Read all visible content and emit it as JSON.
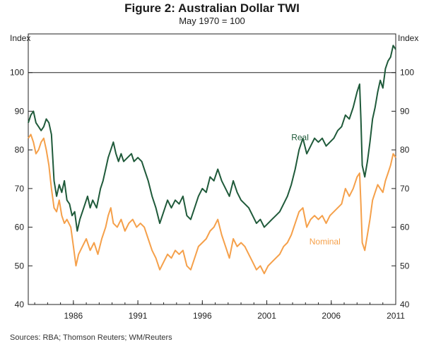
{
  "chart_data": {
    "type": "line",
    "title": "Figure 2: Australian Dollar TWI",
    "subtitle": "May 1970 = 100",
    "ylabel_left": "Index",
    "ylabel_right": "Index",
    "ylim": [
      40,
      110
    ],
    "yticks": [
      40,
      50,
      60,
      70,
      80,
      90,
      100
    ],
    "reference_line": 100,
    "xlim": [
      1983.0,
      2011.5
    ],
    "xticks": [
      {
        "value": 1986.5,
        "label": "1986"
      },
      {
        "value": 1991.5,
        "label": "1991"
      },
      {
        "value": 1996.5,
        "label": "1996"
      },
      {
        "value": 2001.5,
        "label": "2001"
      },
      {
        "value": 2006.5,
        "label": "2006"
      },
      {
        "value": 2011.5,
        "label": "2011"
      }
    ],
    "series": [
      {
        "name": "Real",
        "color": "#1f5a3a",
        "points": [
          [
            1983.0,
            87
          ],
          [
            1983.2,
            89
          ],
          [
            1983.4,
            90
          ],
          [
            1983.6,
            87
          ],
          [
            1983.8,
            86
          ],
          [
            1984.0,
            85
          ],
          [
            1984.2,
            86
          ],
          [
            1984.4,
            88
          ],
          [
            1984.6,
            87
          ],
          [
            1984.8,
            84
          ],
          [
            1985.0,
            72
          ],
          [
            1985.2,
            68
          ],
          [
            1985.4,
            71
          ],
          [
            1985.6,
            69
          ],
          [
            1985.8,
            72
          ],
          [
            1986.0,
            67
          ],
          [
            1986.2,
            66
          ],
          [
            1986.4,
            63
          ],
          [
            1986.6,
            64
          ],
          [
            1986.8,
            59
          ],
          [
            1987.0,
            62
          ],
          [
            1987.3,
            65
          ],
          [
            1987.6,
            68
          ],
          [
            1987.8,
            65
          ],
          [
            1988.0,
            67
          ],
          [
            1988.3,
            65
          ],
          [
            1988.6,
            70
          ],
          [
            1988.8,
            72
          ],
          [
            1989.0,
            75
          ],
          [
            1989.2,
            78
          ],
          [
            1989.4,
            80
          ],
          [
            1989.6,
            82
          ],
          [
            1989.8,
            79
          ],
          [
            1990.0,
            77
          ],
          [
            1990.2,
            79
          ],
          [
            1990.4,
            77
          ],
          [
            1990.7,
            78
          ],
          [
            1991.0,
            79
          ],
          [
            1991.2,
            77
          ],
          [
            1991.5,
            78
          ],
          [
            1991.8,
            77
          ],
          [
            1992.0,
            75
          ],
          [
            1992.3,
            72
          ],
          [
            1992.6,
            68
          ],
          [
            1992.9,
            65
          ],
          [
            1993.2,
            61
          ],
          [
            1993.5,
            64
          ],
          [
            1993.8,
            67
          ],
          [
            1994.1,
            65
          ],
          [
            1994.4,
            67
          ],
          [
            1994.7,
            66
          ],
          [
            1995.0,
            68
          ],
          [
            1995.3,
            63
          ],
          [
            1995.6,
            62
          ],
          [
            1995.9,
            65
          ],
          [
            1996.2,
            68
          ],
          [
            1996.5,
            70
          ],
          [
            1996.8,
            69
          ],
          [
            1997.1,
            73
          ],
          [
            1997.4,
            72
          ],
          [
            1997.7,
            75
          ],
          [
            1998.0,
            72
          ],
          [
            1998.3,
            70
          ],
          [
            1998.6,
            68
          ],
          [
            1998.9,
            72
          ],
          [
            1999.2,
            69
          ],
          [
            1999.5,
            67
          ],
          [
            1999.8,
            66
          ],
          [
            2000.1,
            65
          ],
          [
            2000.4,
            63
          ],
          [
            2000.7,
            61
          ],
          [
            2001.0,
            62
          ],
          [
            2001.3,
            60
          ],
          [
            2001.6,
            61
          ],
          [
            2001.9,
            62
          ],
          [
            2002.2,
            63
          ],
          [
            2002.5,
            64
          ],
          [
            2002.8,
            66
          ],
          [
            2003.1,
            68
          ],
          [
            2003.4,
            71
          ],
          [
            2003.7,
            75
          ],
          [
            2004.0,
            80
          ],
          [
            2004.3,
            83
          ],
          [
            2004.6,
            79
          ],
          [
            2004.9,
            81
          ],
          [
            2005.2,
            83
          ],
          [
            2005.5,
            82
          ],
          [
            2005.8,
            83
          ],
          [
            2006.1,
            81
          ],
          [
            2006.4,
            82
          ],
          [
            2006.7,
            83
          ],
          [
            2007.0,
            85
          ],
          [
            2007.3,
            86
          ],
          [
            2007.6,
            89
          ],
          [
            2007.9,
            88
          ],
          [
            2008.2,
            91
          ],
          [
            2008.5,
            95
          ],
          [
            2008.7,
            97
          ],
          [
            2008.8,
            88
          ],
          [
            2008.9,
            76
          ],
          [
            2009.1,
            73
          ],
          [
            2009.3,
            77
          ],
          [
            2009.5,
            82
          ],
          [
            2009.7,
            88
          ],
          [
            2009.9,
            91
          ],
          [
            2010.1,
            95
          ],
          [
            2010.3,
            98
          ],
          [
            2010.5,
            96
          ],
          [
            2010.7,
            101
          ],
          [
            2010.9,
            103
          ],
          [
            2011.1,
            104
          ],
          [
            2011.3,
            107
          ],
          [
            2011.5,
            106
          ]
        ]
      },
      {
        "name": "Nominal",
        "color": "#f5a04a",
        "points": [
          [
            1983.0,
            83
          ],
          [
            1983.2,
            84
          ],
          [
            1983.4,
            82
          ],
          [
            1983.6,
            79
          ],
          [
            1983.8,
            80
          ],
          [
            1984.0,
            82
          ],
          [
            1984.2,
            83
          ],
          [
            1984.4,
            80
          ],
          [
            1984.6,
            76
          ],
          [
            1984.8,
            70
          ],
          [
            1985.0,
            65
          ],
          [
            1985.2,
            64
          ],
          [
            1985.4,
            67
          ],
          [
            1985.6,
            63
          ],
          [
            1985.8,
            61
          ],
          [
            1986.0,
            62
          ],
          [
            1986.3,
            60
          ],
          [
            1986.5,
            55
          ],
          [
            1986.7,
            50
          ],
          [
            1986.9,
            53
          ],
          [
            1987.2,
            55
          ],
          [
            1987.5,
            57
          ],
          [
            1987.8,
            54
          ],
          [
            1988.1,
            56
          ],
          [
            1988.4,
            53
          ],
          [
            1988.7,
            57
          ],
          [
            1989.0,
            60
          ],
          [
            1989.2,
            63
          ],
          [
            1989.4,
            65
          ],
          [
            1989.6,
            61
          ],
          [
            1989.9,
            60
          ],
          [
            1990.2,
            62
          ],
          [
            1990.5,
            59
          ],
          [
            1990.8,
            61
          ],
          [
            1991.1,
            62
          ],
          [
            1991.4,
            60
          ],
          [
            1991.7,
            61
          ],
          [
            1992.0,
            60
          ],
          [
            1992.3,
            57
          ],
          [
            1992.6,
            54
          ],
          [
            1992.9,
            52
          ],
          [
            1993.2,
            49
          ],
          [
            1993.5,
            51
          ],
          [
            1993.8,
            53
          ],
          [
            1994.1,
            52
          ],
          [
            1994.4,
            54
          ],
          [
            1994.7,
            53
          ],
          [
            1995.0,
            54
          ],
          [
            1995.3,
            50
          ],
          [
            1995.6,
            49
          ],
          [
            1995.9,
            52
          ],
          [
            1996.2,
            55
          ],
          [
            1996.5,
            56
          ],
          [
            1996.8,
            57
          ],
          [
            1997.1,
            59
          ],
          [
            1997.4,
            60
          ],
          [
            1997.7,
            62
          ],
          [
            1998.0,
            58
          ],
          [
            1998.3,
            55
          ],
          [
            1998.6,
            52
          ],
          [
            1998.9,
            57
          ],
          [
            1999.2,
            55
          ],
          [
            1999.5,
            56
          ],
          [
            1999.8,
            55
          ],
          [
            2000.1,
            53
          ],
          [
            2000.4,
            51
          ],
          [
            2000.7,
            49
          ],
          [
            2001.0,
            50
          ],
          [
            2001.3,
            48
          ],
          [
            2001.6,
            50
          ],
          [
            2001.9,
            51
          ],
          [
            2002.2,
            52
          ],
          [
            2002.5,
            53
          ],
          [
            2002.8,
            55
          ],
          [
            2003.1,
            56
          ],
          [
            2003.4,
            58
          ],
          [
            2003.7,
            61
          ],
          [
            2004.0,
            64
          ],
          [
            2004.3,
            65
          ],
          [
            2004.6,
            60
          ],
          [
            2004.9,
            62
          ],
          [
            2005.2,
            63
          ],
          [
            2005.5,
            62
          ],
          [
            2005.8,
            63
          ],
          [
            2006.1,
            61
          ],
          [
            2006.4,
            63
          ],
          [
            2006.7,
            64
          ],
          [
            2007.0,
            65
          ],
          [
            2007.3,
            66
          ],
          [
            2007.6,
            70
          ],
          [
            2007.9,
            68
          ],
          [
            2008.2,
            70
          ],
          [
            2008.5,
            73
          ],
          [
            2008.7,
            74
          ],
          [
            2008.8,
            66
          ],
          [
            2008.9,
            56
          ],
          [
            2009.1,
            54
          ],
          [
            2009.3,
            58
          ],
          [
            2009.5,
            62
          ],
          [
            2009.7,
            67
          ],
          [
            2009.9,
            69
          ],
          [
            2010.1,
            71
          ],
          [
            2010.3,
            70
          ],
          [
            2010.5,
            69
          ],
          [
            2010.7,
            72
          ],
          [
            2010.9,
            74
          ],
          [
            2011.1,
            76
          ],
          [
            2011.3,
            79
          ],
          [
            2011.5,
            78
          ]
        ]
      }
    ],
    "labels": [
      {
        "series": "Real",
        "text": "Real",
        "x": 2003.4,
        "y": 82.5
      },
      {
        "series": "Nominal",
        "text": "Nominal",
        "x": 2004.8,
        "y": 55.5
      }
    ]
  },
  "source_text": "Sources:  RBA; Thomson Reuters; WM/Reuters"
}
